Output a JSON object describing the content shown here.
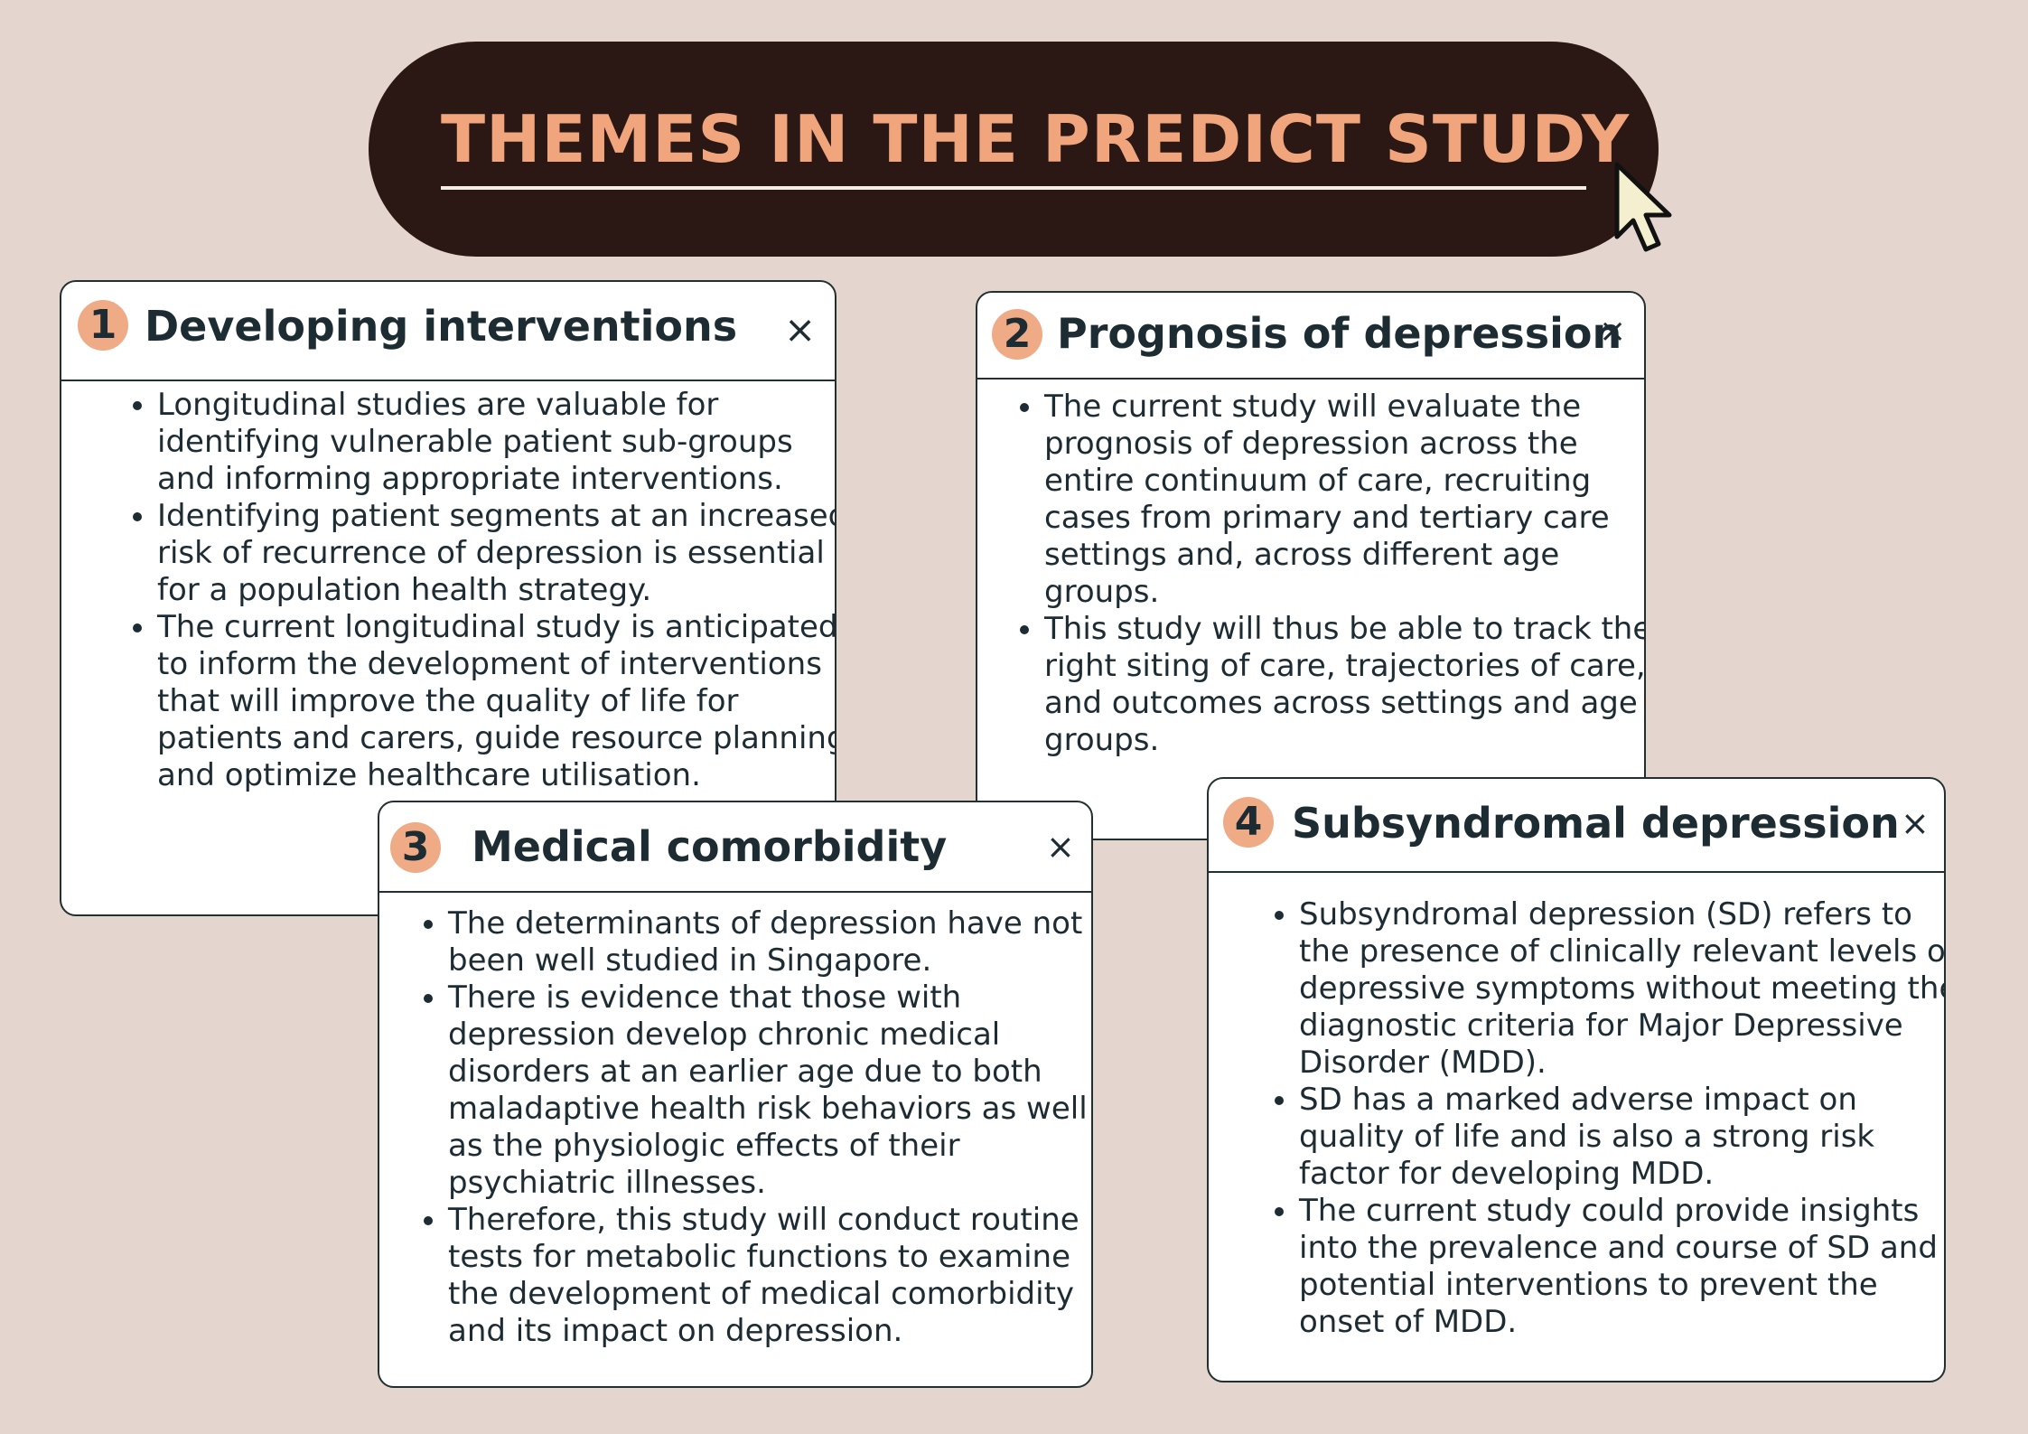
{
  "title": "THEMES IN THE PREDICT STUDY",
  "colors": {
    "background": "#e4d6ce",
    "title_pill": "#2b1714",
    "title_text": "#f0a57c",
    "badge": "#efaa86",
    "card_text": "#1d2b33"
  },
  "icons": {
    "cursor": "arrow-pointer-icon",
    "close": "close-icon"
  },
  "cards": [
    {
      "number": "1",
      "title": "Developing interventions",
      "close": "×",
      "bullets": [
        "Longitudinal studies are valuable for identifying vulnerable patient sub-groups and informing appropriate interventions.",
        "Identifying patient segments at an increased risk of recurrence of depression is essential for a population health strategy.",
        "The current longitudinal study is anticipated to inform the development of  interventions that will improve the quality of life for patients and carers, guide resource planning and optimize healthcare utilisation."
      ]
    },
    {
      "number": "2",
      "title": "Prognosis of depression",
      "close": "×",
      "bullets": [
        "The current study will evaluate the prognosis of depression across the entire continuum of care, recruiting cases from primary and tertiary care settings and, across different age groups.",
        "This study will thus be able to track the right siting of care, trajectories of care, and outcomes across settings and age groups."
      ]
    },
    {
      "number": "3",
      "title": "Medical comorbidity",
      "close": "×",
      "bullets": [
        "The determinants of depression have not been well studied in Singapore.",
        "There is evidence that those with depression develop chronic medical disorders at an earlier age due to both maladaptive health risk behaviors as well as the physiologic effects of their psychiatric illnesses.",
        "Therefore, this study will conduct routine tests for metabolic functions to examine the development of medical comorbidity and its impact on depression."
      ]
    },
    {
      "number": "4",
      "title": "Subsyndromal depression",
      "close": "×",
      "bullets": [
        "Subsyndromal depression (SD) refers to the presence of clinically relevant levels of depressive symptoms without meeting the diagnostic criteria for Major Depressive Disorder (MDD).",
        "SD has a marked adverse impact on quality of life and is also a strong risk factor for developing MDD.",
        "The current study could provide insights into the prevalence and course of SD and potential interventions to prevent the onset of MDD."
      ]
    }
  ]
}
